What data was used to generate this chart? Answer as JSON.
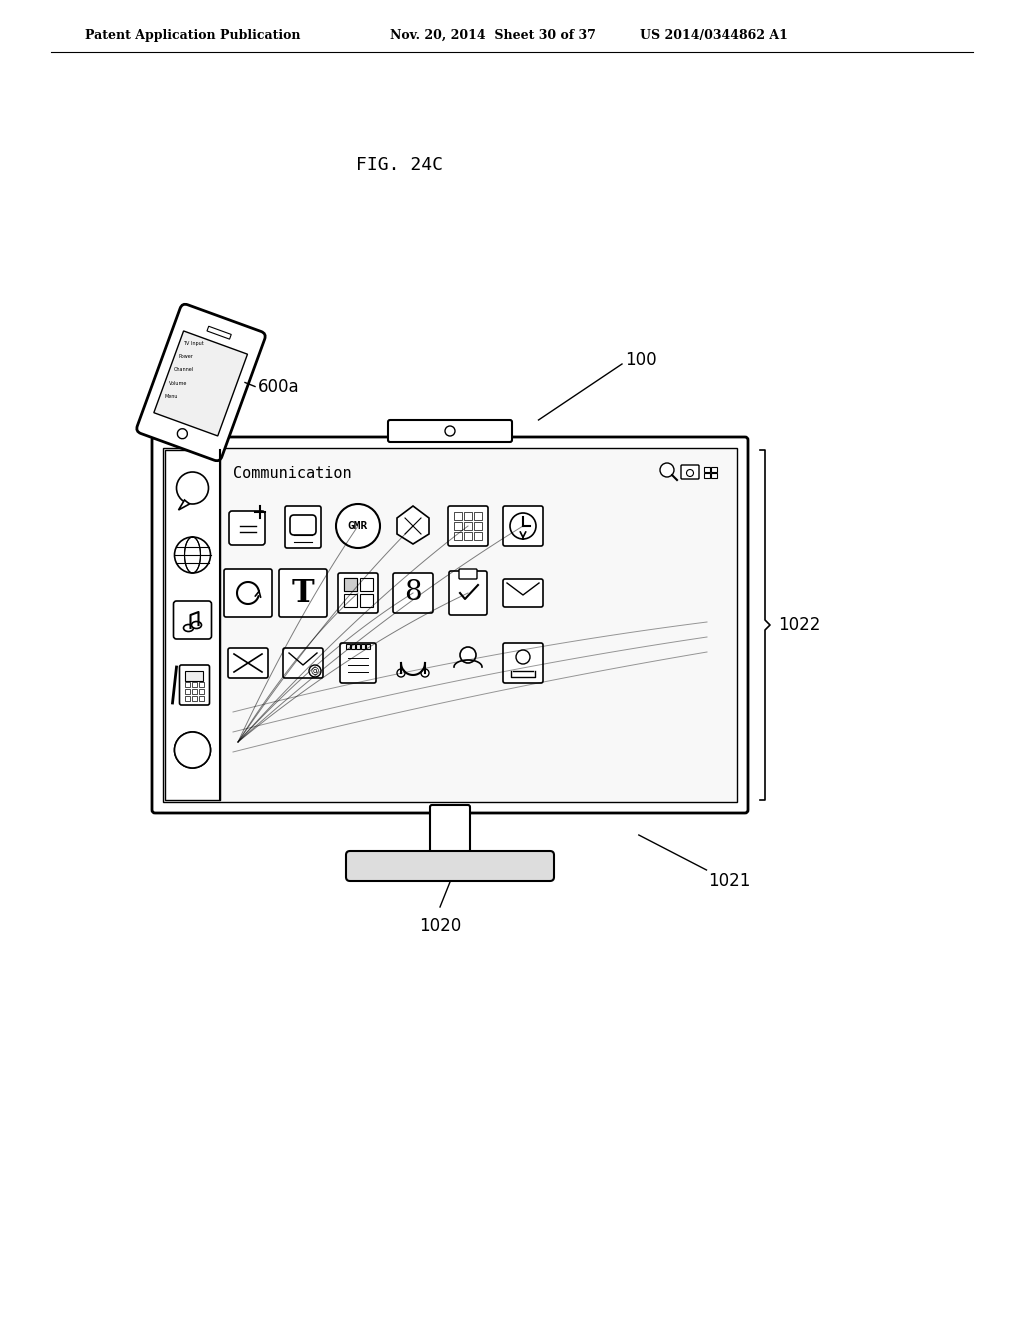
{
  "bg_color": "#ffffff",
  "header_left": "Patent Application Publication",
  "header_mid": "Nov. 20, 2014  Sheet 30 of 37",
  "header_right": "US 2014/0344862 A1",
  "fig_label": "FIG. 24C",
  "label_100": "100",
  "label_1020": "1020",
  "label_1021": "1021",
  "label_1022": "1022",
  "label_600a": "600a",
  "communication_text": "Communication"
}
